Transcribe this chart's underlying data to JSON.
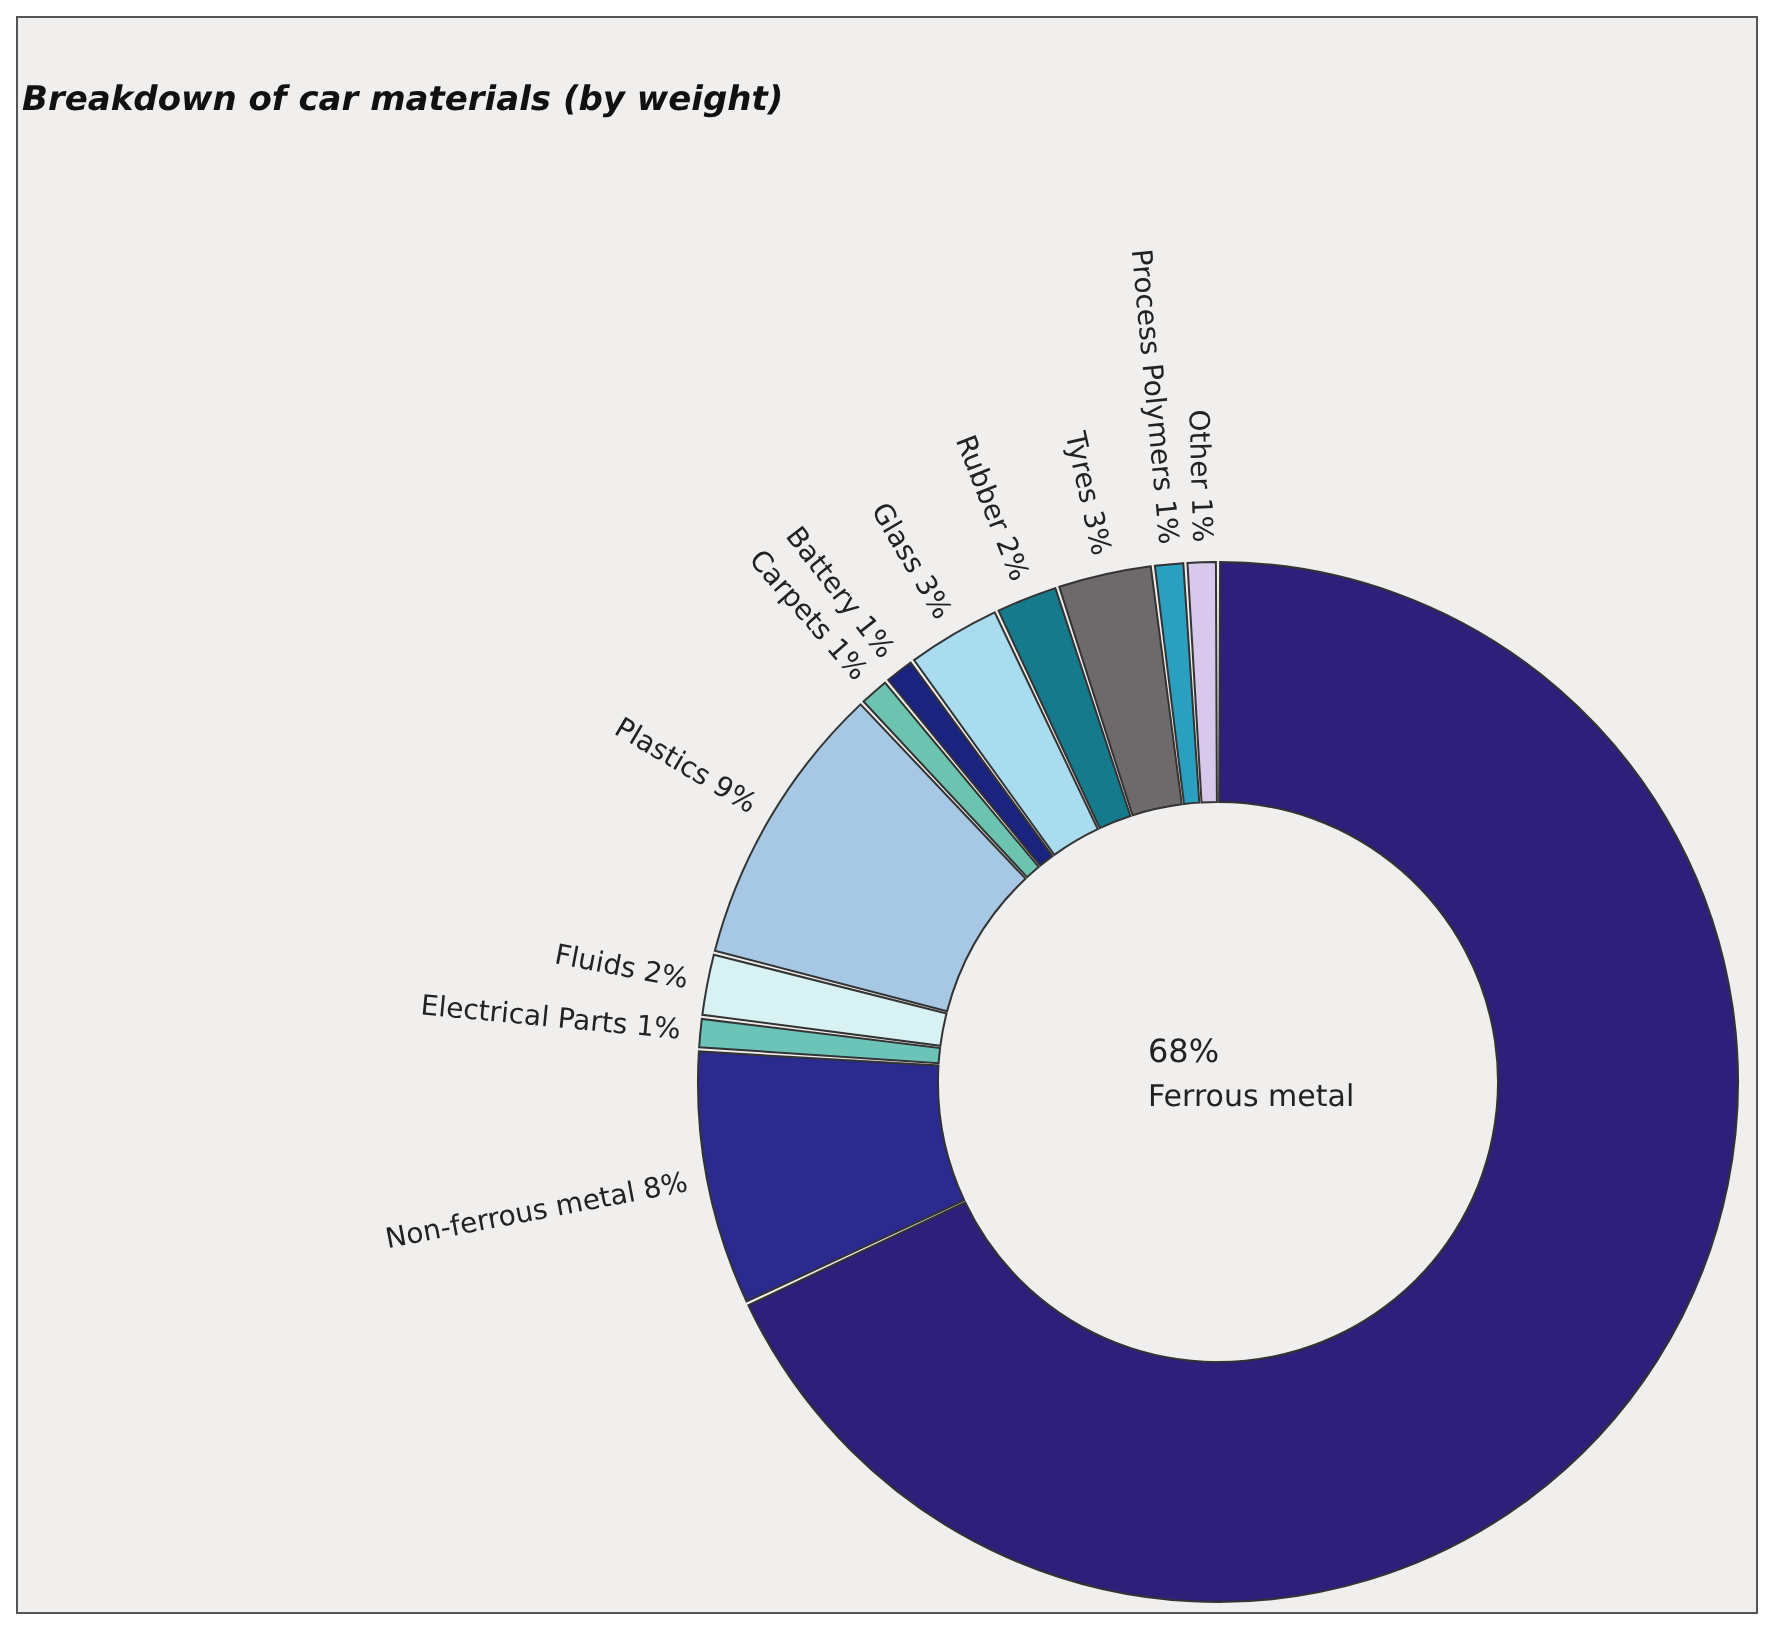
{
  "chart_data": {
    "type": "donut",
    "title": "Breakdown of car materials (by weight)",
    "categories": [
      "Ferrous metal",
      "Non-ferrous metal",
      "Electrical Parts",
      "Fluids",
      "Plastics",
      "Carpets",
      "Battery",
      "Glass",
      "Rubber",
      "Tyres",
      "Process Polymers",
      "Other"
    ],
    "values": [
      68,
      8,
      1,
      2,
      9,
      1,
      1,
      3,
      2,
      3,
      1,
      1
    ],
    "value_labels": [
      "68%",
      "8%",
      "1%",
      "2%",
      "9%",
      "1%",
      "1%",
      "3%",
      "2%",
      "3%",
      "1%",
      "1%"
    ],
    "colors": [
      "#2e1f7a",
      "#2b2a8f",
      "#6cc4b8",
      "#d8f2f4",
      "#a7c8e4",
      "#6cc4b0",
      "#1a237e",
      "#a8dcee",
      "#157a8c",
      "#6e6a6c",
      "#2a9fc0",
      "#d8c8ec"
    ],
    "data_labels": true
  }
}
